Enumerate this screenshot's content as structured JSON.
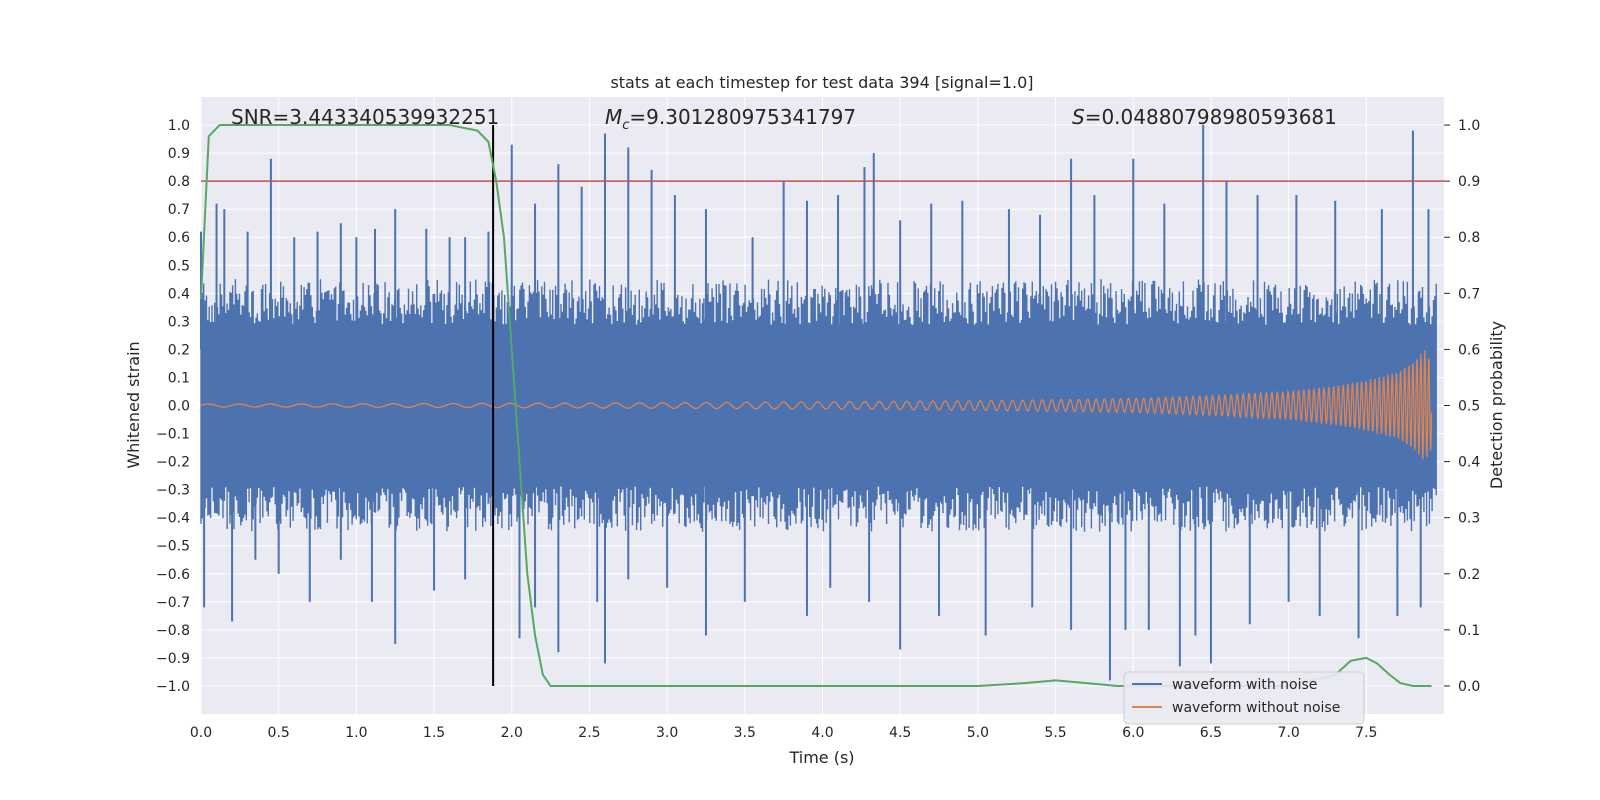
{
  "chart_data": {
    "type": "line",
    "title": "stats at each timestep for test data 394 [signal=1.0]",
    "xlabel": "Time (s)",
    "ylabel": "Whitened strain",
    "ylabel_right": "Detection probability",
    "xlim": [
      0.0,
      8.0
    ],
    "ylim": [
      -1.1,
      1.1
    ],
    "ylim_right": [
      -0.05,
      1.05
    ],
    "x_ticks": [
      "0.0",
      "0.5",
      "1.0",
      "1.5",
      "2.0",
      "2.5",
      "3.0",
      "3.5",
      "4.0",
      "4.5",
      "5.0",
      "5.5",
      "6.0",
      "6.5",
      "7.0",
      "7.5"
    ],
    "y_ticks": [
      "1.0",
      "0.9",
      "0.8",
      "0.7",
      "0.6",
      "0.5",
      "0.4",
      "0.3",
      "0.2",
      "0.1",
      "0.0",
      "−0.1",
      "−0.2",
      "−0.3",
      "−0.4",
      "−0.5",
      "−0.6",
      "−0.7",
      "−0.8",
      "−0.9",
      "−1.0"
    ],
    "y_ticks_right": [
      "1.0",
      "0.9",
      "0.8",
      "0.7",
      "0.6",
      "0.5",
      "0.4",
      "0.3",
      "0.2",
      "0.1",
      "0.0"
    ],
    "annotations": {
      "snr": "SNR=3.443340539932251",
      "mc_symbol": "M",
      "mc_sub": "c",
      "mc_value": "=9.301280975341797",
      "s_symbol": "S",
      "s_value": "=0.04880798980593681"
    },
    "threshold": {
      "value_right_axis": 0.9,
      "color": "#c44e52"
    },
    "detection_time_marker": {
      "x": 1.88,
      "y_from": -1.0,
      "y_to": 1.0,
      "color": "#000000"
    },
    "series": [
      {
        "name": "waveform with noise",
        "color": "#4c72b0",
        "axis": "left",
        "band_core": 0.2,
        "typical_extent": [
          -0.45,
          0.45
        ],
        "positive_spikes": [
          [
            0.0,
            0.62
          ],
          [
            0.1,
            0.72
          ],
          [
            0.15,
            0.7
          ],
          [
            0.3,
            0.62
          ],
          [
            0.45,
            0.88
          ],
          [
            0.6,
            0.6
          ],
          [
            0.75,
            0.62
          ],
          [
            0.9,
            0.65
          ],
          [
            1.0,
            0.6
          ],
          [
            1.12,
            0.63
          ],
          [
            1.25,
            0.7
          ],
          [
            1.45,
            0.63
          ],
          [
            1.6,
            0.6
          ],
          [
            1.7,
            0.6
          ],
          [
            1.85,
            0.62
          ],
          [
            2.0,
            0.93
          ],
          [
            2.15,
            0.72
          ],
          [
            2.3,
            0.86
          ],
          [
            2.45,
            0.78
          ],
          [
            2.6,
            0.97
          ],
          [
            2.75,
            0.92
          ],
          [
            2.9,
            0.84
          ],
          [
            3.05,
            0.75
          ],
          [
            3.25,
            0.7
          ],
          [
            3.55,
            0.6
          ],
          [
            3.75,
            0.8
          ],
          [
            3.9,
            0.73
          ],
          [
            4.1,
            0.75
          ],
          [
            4.27,
            0.85
          ],
          [
            4.33,
            0.9
          ],
          [
            4.5,
            0.66
          ],
          [
            4.7,
            0.72
          ],
          [
            4.9,
            0.73
          ],
          [
            5.2,
            0.7
          ],
          [
            5.4,
            0.68
          ],
          [
            5.6,
            0.88
          ],
          [
            5.75,
            0.75
          ],
          [
            6.0,
            0.88
          ],
          [
            6.2,
            0.72
          ],
          [
            6.45,
            1.0
          ],
          [
            6.6,
            0.8
          ],
          [
            6.8,
            0.75
          ],
          [
            7.05,
            0.75
          ],
          [
            7.3,
            0.73
          ],
          [
            7.6,
            0.7
          ],
          [
            7.8,
            0.98
          ],
          [
            7.9,
            0.7
          ]
        ],
        "negative_spikes": [
          [
            0.02,
            -0.72
          ],
          [
            0.2,
            -0.77
          ],
          [
            0.35,
            -0.55
          ],
          [
            0.5,
            -0.6
          ],
          [
            0.7,
            -0.7
          ],
          [
            0.9,
            -0.55
          ],
          [
            1.1,
            -0.7
          ],
          [
            1.25,
            -0.85
          ],
          [
            1.5,
            -0.66
          ],
          [
            1.7,
            -0.62
          ],
          [
            1.85,
            -0.35
          ],
          [
            2.05,
            -0.83
          ],
          [
            2.15,
            -0.72
          ],
          [
            2.3,
            -0.88
          ],
          [
            2.55,
            -0.7
          ],
          [
            2.6,
            -0.92
          ],
          [
            2.75,
            -0.62
          ],
          [
            3.0,
            -0.65
          ],
          [
            3.25,
            -0.82
          ],
          [
            3.5,
            -0.7
          ],
          [
            3.9,
            -0.75
          ],
          [
            4.05,
            -0.65
          ],
          [
            4.3,
            -0.7
          ],
          [
            4.5,
            -0.87
          ],
          [
            4.75,
            -0.75
          ],
          [
            5.05,
            -0.82
          ],
          [
            5.35,
            -0.72
          ],
          [
            5.6,
            -0.8
          ],
          [
            5.85,
            -0.98
          ],
          [
            5.95,
            -0.8
          ],
          [
            6.1,
            -0.8
          ],
          [
            6.3,
            -0.93
          ],
          [
            6.4,
            -0.82
          ],
          [
            6.5,
            -0.92
          ],
          [
            6.75,
            -0.78
          ],
          [
            7.0,
            -0.7
          ],
          [
            7.2,
            -0.75
          ],
          [
            7.45,
            -0.83
          ],
          [
            7.7,
            -0.75
          ],
          [
            7.85,
            -0.72
          ]
        ]
      },
      {
        "name": "waveform without noise",
        "color": "#dd8452",
        "axis": "left",
        "envelope": [
          [
            0.0,
            0.005
          ],
          [
            1.0,
            0.006
          ],
          [
            2.0,
            0.008
          ],
          [
            3.0,
            0.01
          ],
          [
            4.0,
            0.013
          ],
          [
            5.0,
            0.017
          ],
          [
            6.0,
            0.025
          ],
          [
            6.5,
            0.035
          ],
          [
            7.0,
            0.05
          ],
          [
            7.3,
            0.07
          ],
          [
            7.5,
            0.09
          ],
          [
            7.7,
            0.12
          ],
          [
            7.8,
            0.16
          ],
          [
            7.88,
            0.2
          ],
          [
            7.92,
            0.16
          ]
        ],
        "cycles_per_second_start": 5,
        "cycles_per_second_end": 40
      },
      {
        "name": "detection probability",
        "color": "#55a868",
        "axis": "right",
        "x": [
          0.0,
          0.05,
          0.12,
          0.2,
          0.4,
          0.8,
          1.2,
          1.6,
          1.78,
          1.85,
          1.9,
          1.95,
          2.0,
          2.05,
          2.1,
          2.15,
          2.2,
          2.25,
          2.5,
          3.0,
          3.25,
          3.5,
          4.0,
          4.5,
          5.0,
          5.3,
          5.5,
          5.7,
          5.9,
          6.2,
          6.5,
          7.0,
          7.3,
          7.4,
          7.5,
          7.57,
          7.65,
          7.72,
          7.8,
          7.92
        ],
        "values": [
          0.69,
          0.98,
          1.0,
          1.0,
          1.0,
          1.0,
          1.0,
          1.0,
          0.99,
          0.97,
          0.9,
          0.8,
          0.6,
          0.4,
          0.2,
          0.09,
          0.02,
          0.0,
          0.0,
          0.0,
          0.0,
          0.0,
          0.0,
          0.0,
          0.0,
          0.005,
          0.01,
          0.005,
          0.0,
          0.0,
          0.0,
          0.0,
          0.02,
          0.045,
          0.05,
          0.04,
          0.02,
          0.005,
          0.0,
          0.0
        ]
      }
    ],
    "legend": {
      "placement": "lower-right",
      "entries": [
        {
          "label": "waveform with noise",
          "color": "#4c72b0"
        },
        {
          "label": "waveform without noise",
          "color": "#dd8452"
        }
      ]
    },
    "style": {
      "plot_background": "#eaeaf2",
      "grid_color": "#ffffff",
      "grid": true
    }
  }
}
